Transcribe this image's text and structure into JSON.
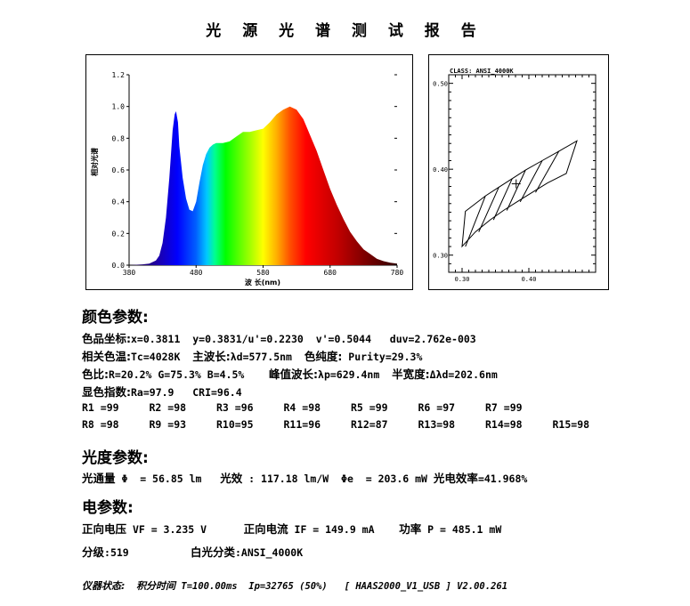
{
  "title": "光 源 光 谱 测 试 报 告",
  "chart_data": [
    {
      "type": "area",
      "ylabel": "相对光谱",
      "xlabel": "波 长(nm)",
      "xlim": [
        380,
        780
      ],
      "ylim": [
        0,
        1.2
      ],
      "x_ticks": [
        "380",
        "480",
        "580",
        "680",
        "780"
      ],
      "y_ticks": [
        "0.0",
        "0.2",
        "0.4",
        "0.6",
        "0.8",
        "1.0",
        "1.2"
      ],
      "fill": "visible-spectrum colors",
      "series": [
        {
          "x": [
            380,
            400,
            410,
            420,
            425,
            430,
            435,
            440,
            445,
            448,
            450,
            453,
            455,
            460,
            465,
            470,
            475,
            480,
            485,
            490,
            495,
            500,
            505,
            510,
            515,
            520,
            530,
            540,
            550,
            560,
            570,
            580,
            590,
            600,
            610,
            620,
            630,
            640,
            650,
            660,
            670,
            680,
            690,
            700,
            710,
            720,
            730,
            740,
            750,
            760,
            770,
            780
          ],
          "values": [
            0.0,
            0.005,
            0.01,
            0.03,
            0.06,
            0.14,
            0.3,
            0.55,
            0.85,
            0.95,
            0.97,
            0.9,
            0.75,
            0.55,
            0.42,
            0.35,
            0.34,
            0.4,
            0.52,
            0.63,
            0.7,
            0.74,
            0.76,
            0.77,
            0.77,
            0.77,
            0.78,
            0.81,
            0.84,
            0.84,
            0.85,
            0.86,
            0.9,
            0.95,
            0.98,
            1.0,
            0.98,
            0.92,
            0.82,
            0.72,
            0.6,
            0.48,
            0.38,
            0.29,
            0.21,
            0.15,
            0.1,
            0.07,
            0.04,
            0.025,
            0.015,
            0.01
          ]
        }
      ]
    },
    {
      "type": "diagram",
      "title": "CLASS: ANSI_4000K",
      "xlim": [
        0.28,
        0.5
      ],
      "ylim": [
        0.28,
        0.51
      ],
      "x_ticks": [
        "0.30",
        "0.40"
      ],
      "y_ticks": [
        "0.50",
        "0.40",
        "0.30"
      ],
      "marker": {
        "x": 0.381,
        "y": 0.383
      }
    }
  ],
  "sections": {
    "color": {
      "heading": "颜色参数:",
      "chromaticity_label": "色品坐标:",
      "chromaticity_value": "x=0.3811  y=0.3831/u'=0.2230  v'=0.5044   duv=2.762e-003",
      "cct_label": "相关色温:",
      "cct_value": "Tc=4028K",
      "dominant_label": "主波长:",
      "dominant_value": "λd=577.5nm",
      "purity_label": "色纯度:",
      "purity_value": " Purity=29.3%",
      "ratio_label": "色比:",
      "ratio_value": "R=20.2% G=75.3% B=4.5%",
      "peak_label": "峰值波长:",
      "peak_value": "λp=629.4nm",
      "halfwidth_label": "半宽度:",
      "halfwidth_value": "Δλd=202.6nm",
      "cri_label": "显色指数:",
      "cri_value": "Ra=97.9   CRI=96.4",
      "ri_row1": [
        "R1 =99",
        "R2 =98",
        "R3 =96",
        "R4 =98",
        "R5 =99",
        "R6 =97",
        "R7 =99"
      ],
      "ri_row2": [
        "R8 =98",
        "R9 =93",
        "R10=95",
        "R11=96",
        "R12=87",
        "R13=98",
        "R14=98",
        "R15=98"
      ]
    },
    "photometric": {
      "heading": "光度参数:",
      "flux_label": "光通量",
      "flux_value": " Φ  = 56.85 lm",
      "efficacy_label": "光效",
      "efficacy_value": " : 117.18 lm/W",
      "radiant_value": "Φe  = 203.6 mW",
      "eff_label": "光电效率",
      "eff_value": "=41.968%"
    },
    "electrical": {
      "heading": "电参数:",
      "vf_label": "正向电压",
      "vf_value": " VF = 3.235 V",
      "if_label": "正向电流",
      "if_value": " IF = 149.9 mA",
      "power_label": "功率",
      "power_value": " P = 485.1 mW",
      "bin_label": "分级",
      "bin_value": ":519",
      "white_label": "白光分类",
      "white_value": ":ANSI_4000K"
    },
    "footer": {
      "status_label": "仪器状态:",
      "integ_label": "积分时间",
      "integ_value": " T=100.00ms  Ip=32765 (50%)   [ HAAS2000_V1_USB ] V2.00.261"
    }
  }
}
